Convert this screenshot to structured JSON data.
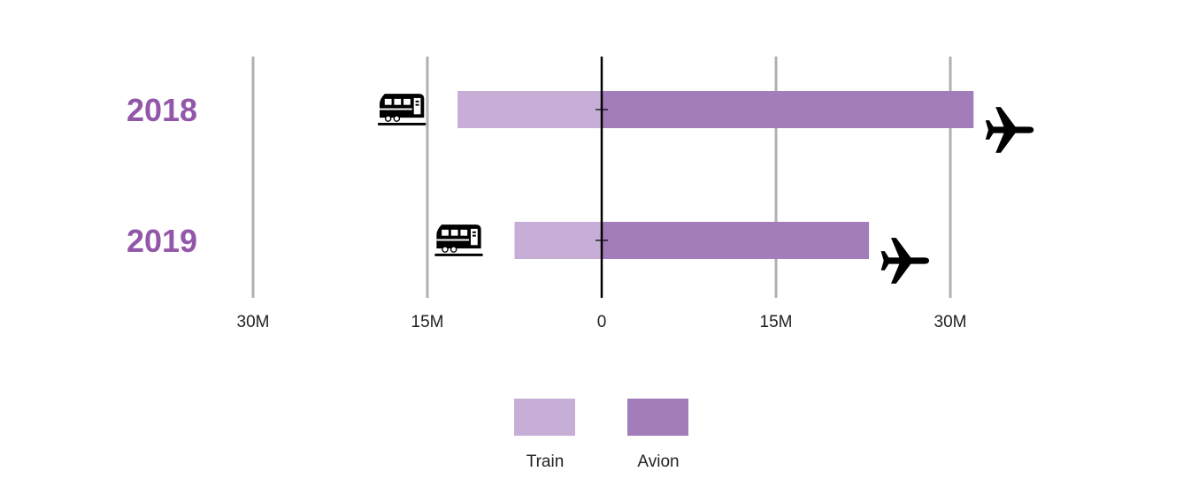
{
  "colors": {
    "train": "#c6aed6",
    "avion": "#a27dba",
    "year_label": "#9257a8",
    "gridline": "#b0b0b0",
    "axis": "#000000",
    "icon": "#000000"
  },
  "icons": {
    "train": "train-icon",
    "avion": "airplane-icon"
  },
  "chart_data": {
    "type": "bar",
    "orientation": "horizontal",
    "diverging": true,
    "categories": [
      "2018",
      "2019"
    ],
    "series": [
      {
        "name": "Train",
        "side": "left",
        "values": [
          12.4,
          7.5
        ]
      },
      {
        "name": "Avion",
        "side": "right",
        "values": [
          32.0,
          23.0
        ]
      }
    ],
    "xlim": [
      -30,
      30
    ],
    "x_unit": "M",
    "x_ticks": [
      {
        "value": -30,
        "label": "30M"
      },
      {
        "value": -15,
        "label": "15M"
      },
      {
        "value": 0,
        "label": "0"
      },
      {
        "value": 15,
        "label": "15M"
      },
      {
        "value": 30,
        "label": "30M"
      }
    ],
    "grid": true,
    "legend": {
      "position": "bottom-center",
      "entries": [
        "Train",
        "Avion"
      ]
    },
    "title": "",
    "xlabel": "",
    "ylabel": ""
  }
}
